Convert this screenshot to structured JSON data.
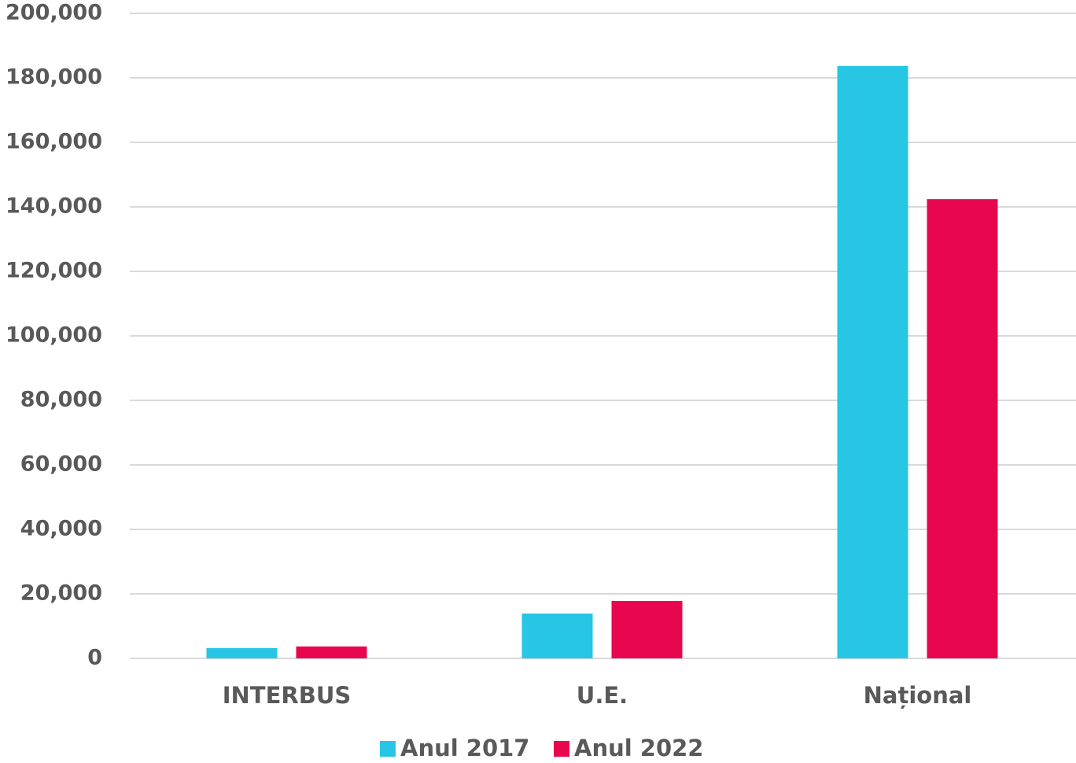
{
  "chart_data": {
    "type": "bar",
    "categories": [
      "INTERBUS",
      "U.E.",
      "Național"
    ],
    "series": [
      {
        "name": "Anul 2017",
        "color": "#26c6e4",
        "values": [
          3200,
          13900,
          183700
        ]
      },
      {
        "name": "Anul 2022",
        "color": "#e8064f",
        "values": [
          3700,
          17800,
          142400
        ]
      }
    ],
    "ylim": [
      0,
      200000
    ],
    "yticks": [
      0,
      {
        "value": 20000,
        "label": "20,000"
      },
      {
        "value": 40000,
        "label": "40,000"
      },
      {
        "value": 60000,
        "label": "60,000"
      },
      {
        "value": 80000,
        "label": "80,000"
      },
      {
        "value": 100000,
        "label": "100,000"
      },
      {
        "value": 120000,
        "label": "120,000"
      },
      {
        "value": 140000,
        "label": "140,000"
      },
      {
        "value": 160000,
        "label": "160,000"
      },
      {
        "value": 180000,
        "label": "180,000"
      },
      {
        "value": 200000,
        "label": "200,000"
      }
    ],
    "grid": true,
    "legend": "bottom"
  }
}
